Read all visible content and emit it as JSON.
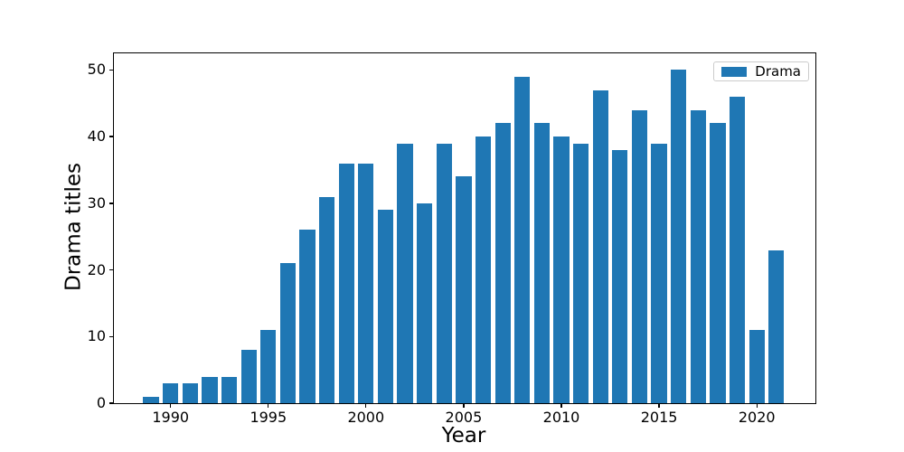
{
  "chart_data": {
    "type": "bar",
    "title": "",
    "xlabel": "Year",
    "ylabel": "Drama titles",
    "x": [
      1989,
      1990,
      1991,
      1992,
      1993,
      1994,
      1995,
      1996,
      1997,
      1998,
      1999,
      2000,
      2001,
      2002,
      2003,
      2004,
      2005,
      2006,
      2007,
      2008,
      2009,
      2010,
      2011,
      2012,
      2013,
      2014,
      2015,
      2016,
      2017,
      2018,
      2019,
      2020,
      2021
    ],
    "values": [
      1,
      3,
      3,
      4,
      4,
      8,
      11,
      21,
      26,
      31,
      36,
      36,
      29,
      39,
      30,
      39,
      34,
      40,
      42,
      49,
      42,
      40,
      39,
      47,
      38,
      44,
      39,
      50,
      44,
      42,
      46,
      11,
      23
    ],
    "series_name": "Drama",
    "bar_color": "#1f77b4",
    "bar_width": 0.8,
    "xlim": [
      1987.1,
      2023.0
    ],
    "ylim": [
      0,
      52.5
    ],
    "xticks": [
      1990,
      1995,
      2000,
      2005,
      2010,
      2015,
      2020
    ],
    "yticks": [
      0,
      10,
      20,
      30,
      40,
      50
    ],
    "grid": false,
    "legend": {
      "label": "Drama",
      "position": "upper right"
    }
  },
  "colors": {
    "spine": "#000000",
    "tick": "#000000",
    "text": "#000000",
    "legend_border": "#cccccc",
    "background": "#ffffff"
  }
}
